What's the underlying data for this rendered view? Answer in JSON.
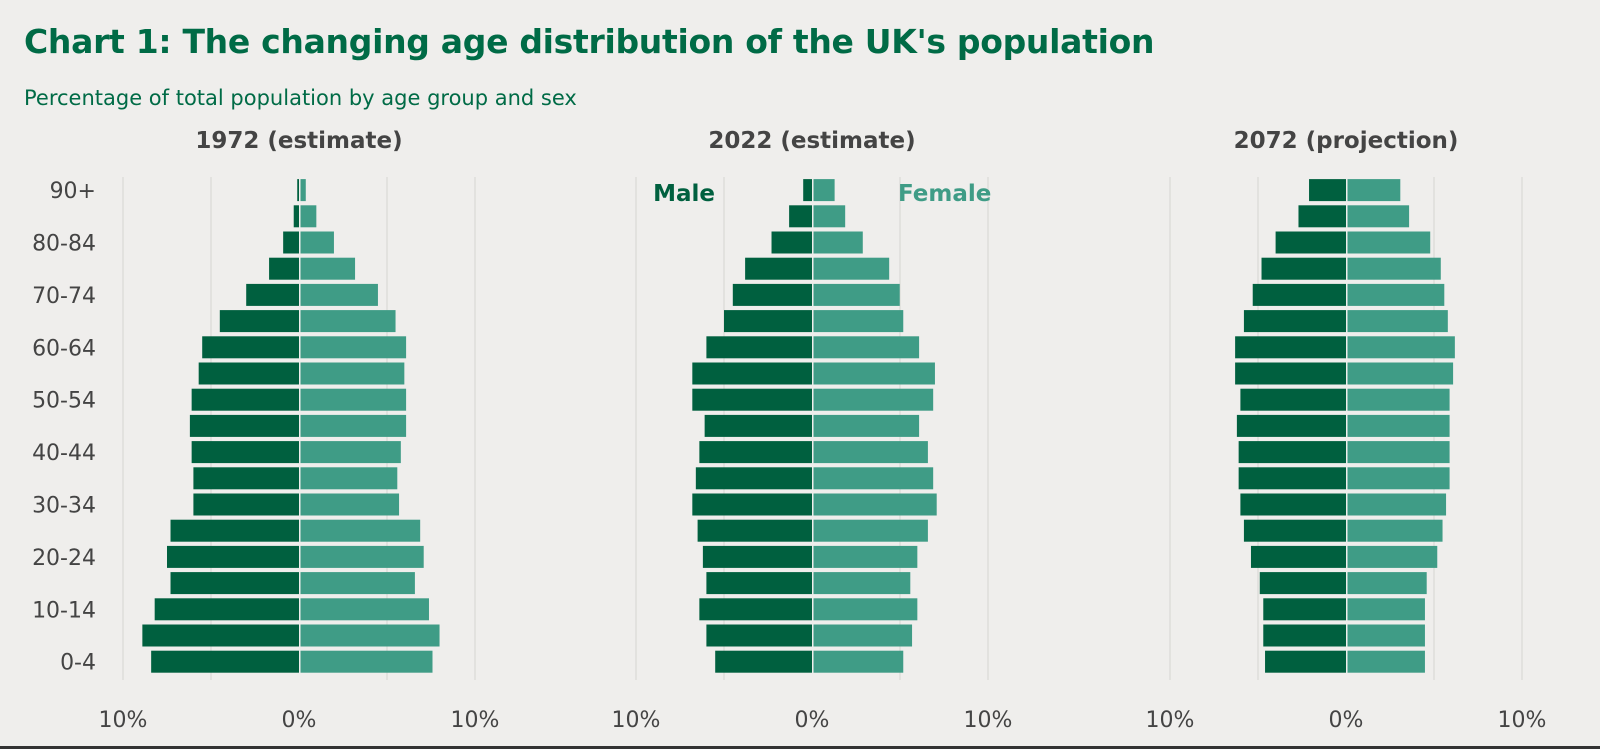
{
  "title": "Chart 1: The changing age distribution of the UK's population",
  "subtitle": "Percentage of total population by age group and sex",
  "colors": {
    "male": "#00603f",
    "female": "#3f9c86",
    "text": "#444444",
    "grid": "#d9d9d6",
    "title": "#006b46"
  },
  "chart_data": {
    "type": "bar",
    "orientation": "horizontal-pyramid",
    "age_groups": [
      "0-4",
      "5-9",
      "10-14",
      "15-19",
      "20-24",
      "25-29",
      "30-34",
      "35-39",
      "40-44",
      "45-49",
      "50-54",
      "55-59",
      "60-64",
      "65-69",
      "70-74",
      "75-79",
      "80-84",
      "85-89",
      "90+"
    ],
    "y_tick_labels": [
      "0-4",
      "10-14",
      "20-24",
      "30-34",
      "40-44",
      "50-54",
      "60-64",
      "70-74",
      "80-84",
      "90+"
    ],
    "x_tick_labels": [
      "10%",
      "0%",
      "10%"
    ],
    "xlim": [
      -10,
      10
    ],
    "legend": {
      "male": "Male",
      "female": "Female"
    },
    "panels": [
      {
        "title": "1972 (estimate)",
        "male": [
          8.4,
          8.9,
          8.2,
          7.3,
          7.5,
          7.3,
          6.0,
          6.0,
          6.1,
          6.2,
          6.1,
          5.7,
          5.5,
          4.5,
          3.0,
          1.7,
          0.9,
          0.3,
          0.1
        ],
        "female": [
          7.5,
          7.9,
          7.3,
          6.5,
          7.0,
          6.8,
          5.6,
          5.5,
          5.7,
          6.0,
          6.0,
          5.9,
          6.0,
          5.4,
          4.4,
          3.1,
          1.9,
          0.9,
          0.3
        ]
      },
      {
        "title": "2022 (estimate)",
        "male": [
          5.5,
          6.0,
          6.4,
          6.0,
          6.2,
          6.5,
          6.8,
          6.6,
          6.4,
          6.1,
          6.8,
          6.8,
          6.0,
          5.0,
          4.5,
          3.8,
          2.3,
          1.3,
          0.5
        ],
        "female": [
          5.1,
          5.6,
          5.9,
          5.5,
          5.9,
          6.5,
          7.0,
          6.8,
          6.5,
          6.0,
          6.8,
          6.9,
          6.0,
          5.1,
          4.9,
          4.3,
          2.8,
          1.8,
          1.2
        ]
      },
      {
        "title": "2072 (projection)",
        "male": [
          4.6,
          4.7,
          4.7,
          4.9,
          5.4,
          5.8,
          6.0,
          6.1,
          6.1,
          6.2,
          6.0,
          6.3,
          6.3,
          5.8,
          5.3,
          4.8,
          4.0,
          2.7,
          2.1
        ],
        "female": [
          4.4,
          4.4,
          4.4,
          4.5,
          5.1,
          5.4,
          5.6,
          5.8,
          5.8,
          5.8,
          5.8,
          6.0,
          6.1,
          5.7,
          5.5,
          5.3,
          4.7,
          3.5,
          3.0
        ]
      }
    ]
  }
}
